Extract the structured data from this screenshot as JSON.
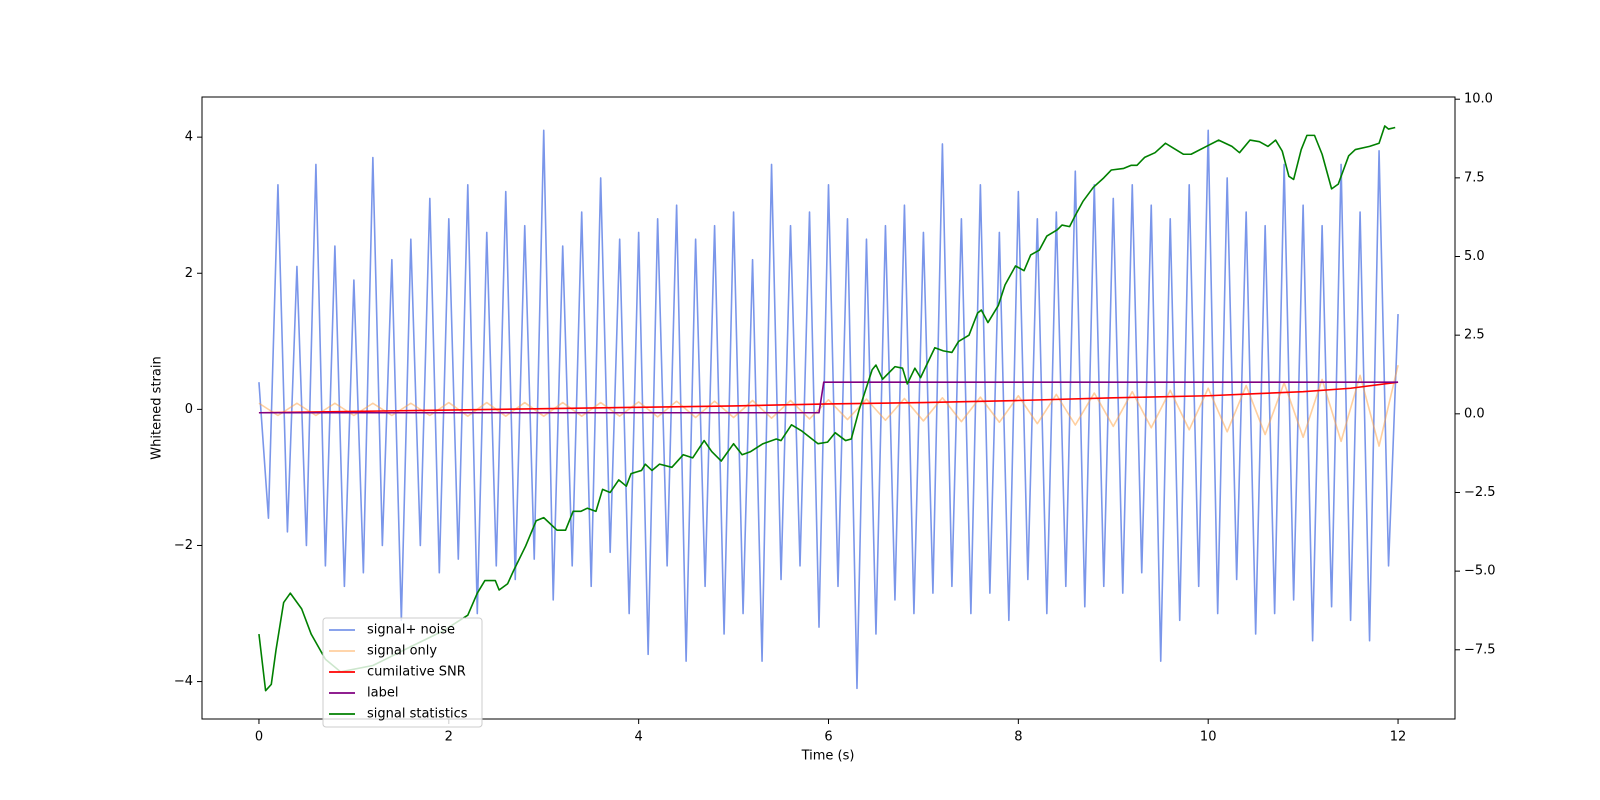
{
  "chart_data": {
    "type": "line",
    "xlabel": "Time (s)",
    "ylabel": "Whitened strain",
    "xlim": [
      -0.6,
      12.6
    ],
    "xticks": [
      0,
      2,
      4,
      6,
      8,
      10,
      12
    ],
    "ylim": [
      -4.55,
      4.59
    ],
    "yticks": [
      {
        "value": -4,
        "label": "−4"
      },
      {
        "value": -2,
        "label": "−2"
      },
      0,
      2,
      4
    ],
    "y2lim": [
      -9.7,
      10.07
    ],
    "y2ticks": [
      {
        "value": -7.5,
        "label": "−7.5"
      },
      {
        "value": -5,
        "label": "−5.0"
      },
      {
        "value": -2.5,
        "label": "−2.5"
      },
      {
        "value": 0,
        "label": "0.0"
      },
      2.5,
      {
        "value": 5,
        "label": "5.0"
      },
      7.5,
      {
        "value": 10,
        "label": "10.0"
      }
    ],
    "legend": "lower left",
    "series": [
      {
        "name": "signal+ noise",
        "color": "#4169e1",
        "opacity": 0.7,
        "x": [
          0,
          0.1,
          0.2,
          0.3,
          0.4,
          0.5,
          0.6,
          0.7,
          0.8,
          0.9,
          1,
          1.1,
          1.2,
          1.3,
          1.4,
          1.5,
          1.6,
          1.7,
          1.8,
          1.9,
          2,
          2.1,
          2.2,
          2.3,
          2.4,
          2.5,
          2.6,
          2.7,
          2.8,
          2.9,
          3,
          3.1,
          3.2,
          3.3,
          3.4,
          3.5,
          3.6,
          3.7,
          3.8,
          3.9,
          4,
          4.1,
          4.2,
          4.3,
          4.4,
          4.5,
          4.6,
          4.7,
          4.8,
          4.9,
          5,
          5.1,
          5.2,
          5.3,
          5.4,
          5.5,
          5.6,
          5.7,
          5.8,
          5.9,
          6,
          6.1,
          6.2,
          6.3,
          6.4,
          6.5,
          6.6,
          6.7,
          6.8,
          6.9,
          7,
          7.1,
          7.2,
          7.3,
          7.4,
          7.5,
          7.6,
          7.7,
          7.8,
          7.9,
          8,
          8.1,
          8.2,
          8.3,
          8.4,
          8.5,
          8.6,
          8.7,
          8.8,
          8.9,
          9,
          9.1,
          9.2,
          9.3,
          9.4,
          9.5,
          9.6,
          9.7,
          9.8,
          9.9,
          10,
          10.1,
          10.2,
          10.3,
          10.4,
          10.5,
          10.6,
          10.7,
          10.8,
          10.9,
          11,
          11.1,
          11.2,
          11.3,
          11.4,
          11.5,
          11.6,
          11.7,
          11.8,
          11.9,
          12
        ],
        "values": [
          0.4,
          -1.6,
          3.3,
          -1.8,
          2.1,
          -2.0,
          3.6,
          -2.3,
          2.4,
          -2.6,
          1.9,
          -2.4,
          3.7,
          -2.0,
          2.2,
          -3.1,
          2.5,
          -2.0,
          3.1,
          -2.4,
          2.8,
          -2.2,
          3.3,
          -3.0,
          2.6,
          -2.3,
          3.2,
          -2.5,
          2.7,
          -2.2,
          4.1,
          -2.8,
          2.4,
          -2.3,
          2.9,
          -2.6,
          3.4,
          -2.1,
          2.5,
          -3.0,
          2.6,
          -3.6,
          2.8,
          -2.3,
          3.0,
          -3.7,
          2.5,
          -2.6,
          2.7,
          -3.3,
          2.9,
          -3.0,
          2.2,
          -3.7,
          3.6,
          -2.5,
          2.7,
          -2.3,
          2.9,
          -3.2,
          3.3,
          -2.6,
          2.8,
          -4.1,
          2.5,
          -3.3,
          2.7,
          -2.8,
          3.0,
          -3.0,
          2.6,
          -2.7,
          3.9,
          -2.6,
          2.8,
          -3.0,
          3.3,
          -2.7,
          2.6,
          -3.1,
          3.2,
          -2.5,
          2.8,
          -3.0,
          2.9,
          -2.6,
          3.5,
          -2.9,
          3.3,
          -2.6,
          3.1,
          -2.7,
          3.3,
          -2.4,
          3.0,
          -3.7,
          2.8,
          -3.1,
          3.3,
          -2.6,
          4.1,
          -3.0,
          3.4,
          -2.5,
          2.9,
          -3.3,
          2.7,
          -3.0,
          3.6,
          -2.8,
          3.0,
          -3.4,
          2.7,
          -2.9,
          3.6,
          -3.1,
          2.9,
          -3.4,
          3.8,
          -2.3,
          1.4
        ]
      },
      {
        "name": "signal only",
        "color": "#ffa040",
        "opacity": 0.5,
        "x": [
          0,
          0.2,
          0.4,
          0.6,
          0.8,
          1,
          1.2,
          1.4,
          1.6,
          1.8,
          2,
          2.2,
          2.4,
          2.6,
          2.8,
          3,
          3.2,
          3.4,
          3.6,
          3.8,
          4,
          4.2,
          4.4,
          4.6,
          4.8,
          5,
          5.2,
          5.4,
          5.6,
          5.8,
          6,
          6.2,
          6.4,
          6.6,
          6.8,
          7,
          7.2,
          7.4,
          7.6,
          7.8,
          8,
          8.2,
          8.4,
          8.6,
          8.8,
          9,
          9.2,
          9.4,
          9.6,
          9.8,
          10,
          10.2,
          10.4,
          10.6,
          10.8,
          11,
          11.2,
          11.4,
          11.6,
          11.8,
          12
        ],
        "values": [
          0.09,
          -0.09,
          0.09,
          -0.09,
          0.09,
          -0.09,
          0.09,
          -0.09,
          0.09,
          -0.09,
          0.1,
          -0.1,
          0.1,
          -0.1,
          0.1,
          -0.1,
          0.1,
          -0.1,
          0.1,
          -0.1,
          0.11,
          -0.11,
          0.12,
          -0.12,
          0.12,
          -0.12,
          0.13,
          -0.13,
          0.13,
          -0.14,
          0.14,
          -0.15,
          0.15,
          -0.16,
          0.16,
          -0.17,
          0.17,
          -0.18,
          0.18,
          -0.19,
          0.2,
          -0.21,
          0.22,
          -0.23,
          0.24,
          -0.25,
          0.26,
          -0.27,
          0.28,
          -0.3,
          0.31,
          -0.33,
          0.35,
          -0.37,
          0.39,
          -0.41,
          0.44,
          -0.47,
          0.5,
          -0.54,
          0.65
        ]
      },
      {
        "name": "cumilative SNR",
        "color": "#ff0000",
        "opacity": 1,
        "x": [
          0,
          1,
          2,
          3,
          4,
          5,
          6,
          7,
          8,
          9,
          10,
          10.5,
          11,
          11.5,
          12
        ],
        "values": [
          -0.05,
          -0.03,
          -0.01,
          0.01,
          0.03,
          0.05,
          0.08,
          0.1,
          0.13,
          0.17,
          0.2,
          0.23,
          0.26,
          0.31,
          0.4
        ]
      },
      {
        "name": "label",
        "color": "#800080",
        "opacity": 1,
        "x": [
          0,
          5.9,
          5.95,
          12
        ],
        "values": [
          -0.05,
          -0.05,
          0.4,
          0.4
        ]
      },
      {
        "name": "signal statistics",
        "color": "#008000",
        "opacity": 1,
        "axis": "y2",
        "x": [
          0,
          0.07,
          0.13,
          0.18,
          0.26,
          0.33,
          0.45,
          0.55,
          0.7,
          0.86,
          1.2,
          1.6,
          1.94,
          2.2,
          2.3,
          2.38,
          2.49,
          2.53,
          2.62,
          2.68,
          2.81,
          2.92,
          3.0,
          3.14,
          3.23,
          3.31,
          3.39,
          3.46,
          3.55,
          3.62,
          3.7,
          3.79,
          3.87,
          3.92,
          4.03,
          4.07,
          4.14,
          4.22,
          4.35,
          4.47,
          4.57,
          4.69,
          4.77,
          4.87,
          5.0,
          5.09,
          5.18,
          5.31,
          5.45,
          5.5,
          5.61,
          5.72,
          5.89,
          5.99,
          6.07,
          6.18,
          6.24,
          6.32,
          6.46,
          6.5,
          6.57,
          6.7,
          6.78,
          6.83,
          6.91,
          6.97,
          7.12,
          7.21,
          7.3,
          7.37,
          7.48,
          7.57,
          7.61,
          7.68,
          7.79,
          7.86,
          7.97,
          8.06,
          8.13,
          8.22,
          8.3,
          8.41,
          8.46,
          8.54,
          8.59,
          8.68,
          8.79,
          8.9,
          8.98,
          9.11,
          9.19,
          9.25,
          9.33,
          9.44,
          9.55,
          9.63,
          9.74,
          9.82,
          9.98,
          10.11,
          10.25,
          10.33,
          10.44,
          10.54,
          10.63,
          10.71,
          10.78,
          10.85,
          10.9,
          10.98,
          11.04,
          11.12,
          11.2,
          11.3,
          11.37,
          11.48,
          11.55,
          11.7,
          11.8,
          11.86,
          11.9,
          11.97
        ],
        "values": [
          -7.0,
          -8.8,
          -8.6,
          -7.5,
          -6.0,
          -5.7,
          -6.2,
          -7.0,
          -7.8,
          -8.2,
          -8.0,
          -7.4,
          -6.9,
          -6.4,
          -5.7,
          -5.3,
          -5.3,
          -5.6,
          -5.4,
          -5.0,
          -4.2,
          -3.4,
          -3.3,
          -3.7,
          -3.7,
          -3.1,
          -3.1,
          -3.0,
          -3.1,
          -2.4,
          -2.5,
          -2.1,
          -2.3,
          -1.9,
          -1.8,
          -1.6,
          -1.8,
          -1.6,
          -1.7,
          -1.3,
          -1.4,
          -0.85,
          -1.2,
          -1.5,
          -0.95,
          -1.3,
          -1.2,
          -0.95,
          -0.8,
          -0.85,
          -0.35,
          -0.55,
          -0.95,
          -0.9,
          -0.6,
          -0.85,
          -0.8,
          0.1,
          1.4,
          1.55,
          1.1,
          1.5,
          1.45,
          0.95,
          1.45,
          1.15,
          2.1,
          2.0,
          1.95,
          2.3,
          2.5,
          3.2,
          3.3,
          2.9,
          3.45,
          4.1,
          4.7,
          4.55,
          5.05,
          5.2,
          5.65,
          5.85,
          6.0,
          5.95,
          6.25,
          6.75,
          7.2,
          7.5,
          7.75,
          7.8,
          7.9,
          7.9,
          8.15,
          8.3,
          8.6,
          8.45,
          8.25,
          8.25,
          8.5,
          8.7,
          8.5,
          8.3,
          8.7,
          8.65,
          8.5,
          8.7,
          8.35,
          7.55,
          7.45,
          8.4,
          8.85,
          8.85,
          8.25,
          7.15,
          7.3,
          8.2,
          8.4,
          8.5,
          8.6,
          9.15,
          9.05,
          9.1
        ]
      }
    ]
  }
}
